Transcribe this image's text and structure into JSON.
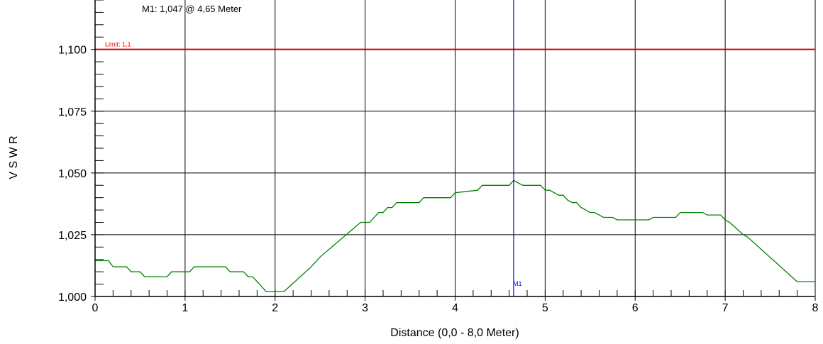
{
  "marker_readout": "M1: 1,047  @ 4,65 Meter",
  "limit_label": "Limit: 1,1",
  "marker_label": "M1",
  "colors": {
    "trace": "#008000",
    "limit": "#d00000",
    "limit_text": "#ff0000",
    "marker": "#0000e0",
    "grid": "#000000",
    "axis_text": "#000000"
  },
  "chart_data": {
    "type": "line",
    "title": "",
    "xlabel": "Distance (0,0 - 8,0 Meter)",
    "ylabel": "V S W R",
    "xlim": [
      0,
      8
    ],
    "ylim": [
      1.0,
      1.12
    ],
    "grid": true,
    "x_ticks": [
      0,
      1,
      2,
      3,
      4,
      5,
      6,
      7,
      8
    ],
    "x_tick_labels": [
      "0",
      "1",
      "2",
      "3",
      "4",
      "5",
      "6",
      "7",
      "8"
    ],
    "y_ticks": [
      1.0,
      1.025,
      1.05,
      1.075,
      1.1
    ],
    "y_tick_labels": [
      "1,000",
      "1,025",
      "1,050",
      "1,075",
      "1,100"
    ],
    "limit": 1.1,
    "marker": {
      "x": 4.65,
      "y": 1.047
    },
    "series": [
      {
        "x": [
          0.0,
          0.15,
          0.2,
          0.3,
          0.35,
          0.4,
          0.45,
          0.5,
          0.55,
          0.6,
          0.8,
          0.85,
          1.05,
          1.1,
          1.45,
          1.5,
          1.65,
          1.7,
          1.75,
          1.8,
          1.9,
          1.95,
          2.1,
          2.4,
          2.5,
          2.95,
          3.05,
          3.15,
          3.2,
          3.25,
          3.3,
          3.35,
          3.4,
          3.6,
          3.65,
          3.95,
          4.0,
          4.25,
          4.3,
          4.6,
          4.65,
          4.7,
          4.75,
          4.95,
          5.0,
          5.05,
          5.1,
          5.15,
          5.2,
          5.25,
          5.3,
          5.35,
          5.4,
          5.5,
          5.55,
          5.6,
          5.65,
          5.75,
          5.8,
          6.15,
          6.2,
          6.45,
          6.5,
          6.75,
          6.8,
          6.95,
          7.0,
          7.05,
          7.2,
          7.25,
          7.8,
          7.85,
          8.0
        ],
        "y": [
          1.0145,
          1.0145,
          1.012,
          1.012,
          1.012,
          1.01,
          1.01,
          1.01,
          1.008,
          1.008,
          1.008,
          1.01,
          1.01,
          1.012,
          1.012,
          1.01,
          1.01,
          1.008,
          1.008,
          1.006,
          1.002,
          1.002,
          1.002,
          1.012,
          1.016,
          1.03,
          1.03,
          1.034,
          1.034,
          1.036,
          1.036,
          1.038,
          1.038,
          1.038,
          1.04,
          1.04,
          1.042,
          1.043,
          1.045,
          1.045,
          1.047,
          1.046,
          1.045,
          1.045,
          1.043,
          1.043,
          1.042,
          1.041,
          1.041,
          1.039,
          1.038,
          1.038,
          1.036,
          1.034,
          1.034,
          1.033,
          1.032,
          1.032,
          1.031,
          1.031,
          1.032,
          1.032,
          1.034,
          1.034,
          1.033,
          1.033,
          1.031,
          1.03,
          1.025,
          1.024,
          1.006,
          1.006,
          1.006
        ]
      }
    ]
  }
}
